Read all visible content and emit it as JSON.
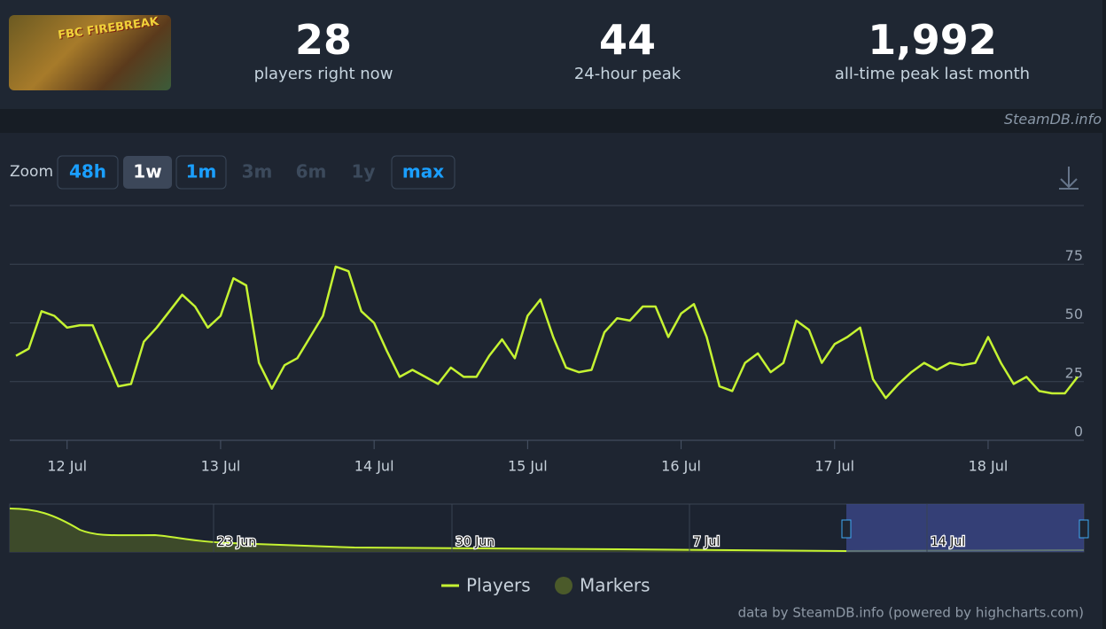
{
  "header": {
    "thumbnail_text": "FBC FIREBREAK",
    "stats": [
      {
        "value": "28",
        "label": "players right now"
      },
      {
        "value": "44",
        "label": "24-hour peak"
      },
      {
        "value": "1,992",
        "label": "all-time peak last month"
      }
    ],
    "watermark": "SteamDB.info"
  },
  "zoom": {
    "label": "Zoom",
    "buttons": [
      {
        "text": "48h",
        "state": "enabled"
      },
      {
        "text": "1w",
        "state": "active"
      },
      {
        "text": "1m",
        "state": "enabled"
      },
      {
        "text": "3m",
        "state": "disabled"
      },
      {
        "text": "6m",
        "state": "disabled"
      },
      {
        "text": "1y",
        "state": "disabled"
      },
      {
        "text": "max",
        "state": "enabled"
      }
    ]
  },
  "chart_data": {
    "type": "line",
    "categories": [
      null,
      null,
      null,
      null,
      "12 Jul",
      null,
      null,
      null,
      null,
      null,
      null,
      null,
      null,
      null,
      null,
      null,
      "13 Jul",
      null,
      null,
      null,
      null,
      null,
      null,
      null,
      null,
      null,
      null,
      null,
      "14 Jul",
      null,
      null,
      null,
      null,
      null,
      null,
      null,
      null,
      null,
      null,
      null,
      "15 Jul",
      null,
      null,
      null,
      null,
      null,
      null,
      null,
      null,
      null,
      null,
      null,
      "16 Jul",
      null,
      null,
      null,
      null,
      null,
      null,
      null,
      null,
      null,
      null,
      null,
      "17 Jul",
      null,
      null,
      null,
      null,
      null,
      null,
      null,
      null,
      null,
      null,
      null,
      "18 Jul",
      null,
      null,
      null,
      null,
      null,
      null,
      null
    ],
    "series": [
      {
        "name": "Players",
        "color": "#c5f332",
        "values": [
          36,
          39,
          55,
          53,
          48,
          49,
          49,
          36,
          23,
          24,
          42,
          48,
          55,
          62,
          57,
          48,
          53,
          69,
          66,
          33,
          22,
          32,
          35,
          44,
          53,
          74,
          72,
          55,
          50,
          38,
          27,
          30,
          27,
          24,
          31,
          27,
          27,
          36,
          43,
          35,
          53,
          60,
          44,
          31,
          29,
          30,
          46,
          52,
          51,
          57,
          57,
          44,
          54,
          58,
          44,
          23,
          21,
          33,
          37,
          29,
          33,
          51,
          47,
          33,
          41,
          44,
          48,
          26,
          18,
          24,
          29,
          33,
          30,
          33,
          32,
          33,
          44,
          33,
          24,
          27,
          21,
          20,
          20,
          27
        ]
      }
    ],
    "marker_series": {
      "name": "Markers",
      "color": "#4b5a2a"
    },
    "ylim": [
      0,
      100
    ],
    "yticks": [
      0,
      25,
      50,
      75
    ],
    "grid": true,
    "navigator_labels": [
      "23 Jun",
      "30 Jun",
      "7 Jul",
      "14 Jul"
    ]
  },
  "footer": "data by SteamDB.info (powered by highcharts.com)"
}
